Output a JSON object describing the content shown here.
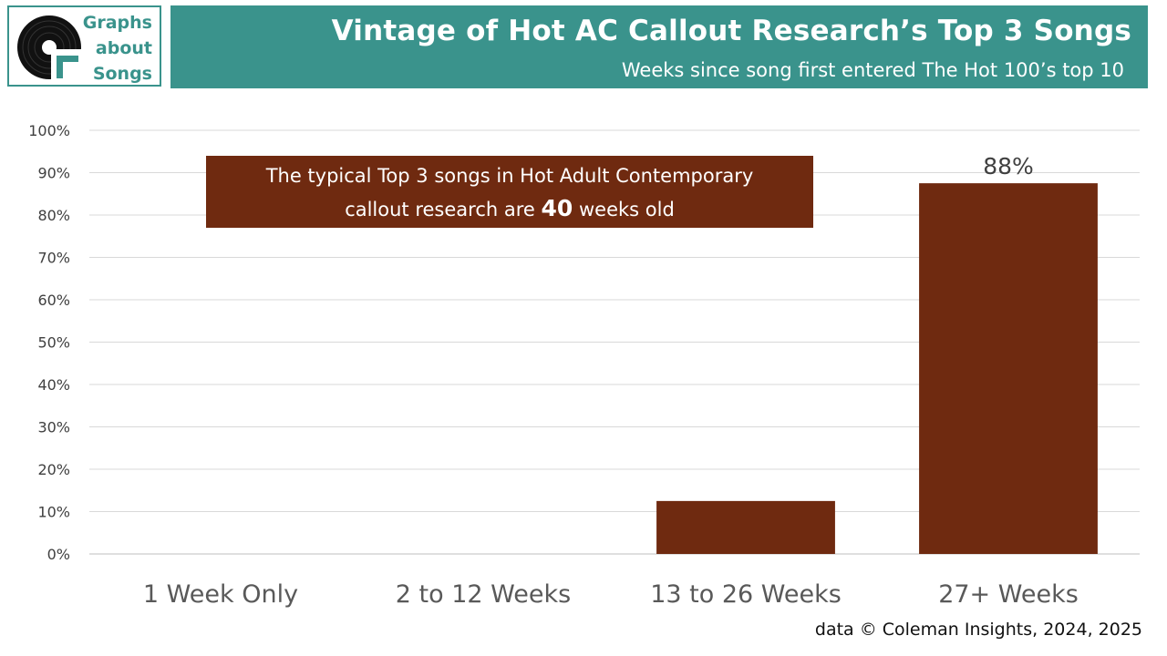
{
  "logo": {
    "lines": [
      "Graphs",
      "about",
      "Songs"
    ]
  },
  "header": {
    "title": "Vintage of Hot AC Callout Research’s Top 3 Songs",
    "subtitle": "Weeks since song first entered The Hot 100’s top 10"
  },
  "callout": {
    "line1": "The typical Top 3 songs in Hot Adult Contemporary",
    "line2_pre": "callout research are",
    "line2_num": "40",
    "line2_post": "weeks old"
  },
  "source": "data © Coleman Insights, 2024, 2025",
  "colors": {
    "teal": "#3a938c",
    "bar": "#6f2a10",
    "grid": "#d9d9d9"
  },
  "chart_data": {
    "type": "bar",
    "categories": [
      "1 Week Only",
      "2 to 12 Weeks",
      "13 to 26 Weeks",
      "27+ Weeks"
    ],
    "values": [
      0,
      0,
      12.5,
      87.5
    ],
    "data_labels": [
      "",
      "",
      "",
      "88%"
    ],
    "yticks": [
      "0%",
      "10%",
      "20%",
      "30%",
      "40%",
      "50%",
      "60%",
      "70%",
      "80%",
      "90%",
      "100%"
    ],
    "ylim": [
      0,
      100
    ],
    "grid": true
  }
}
